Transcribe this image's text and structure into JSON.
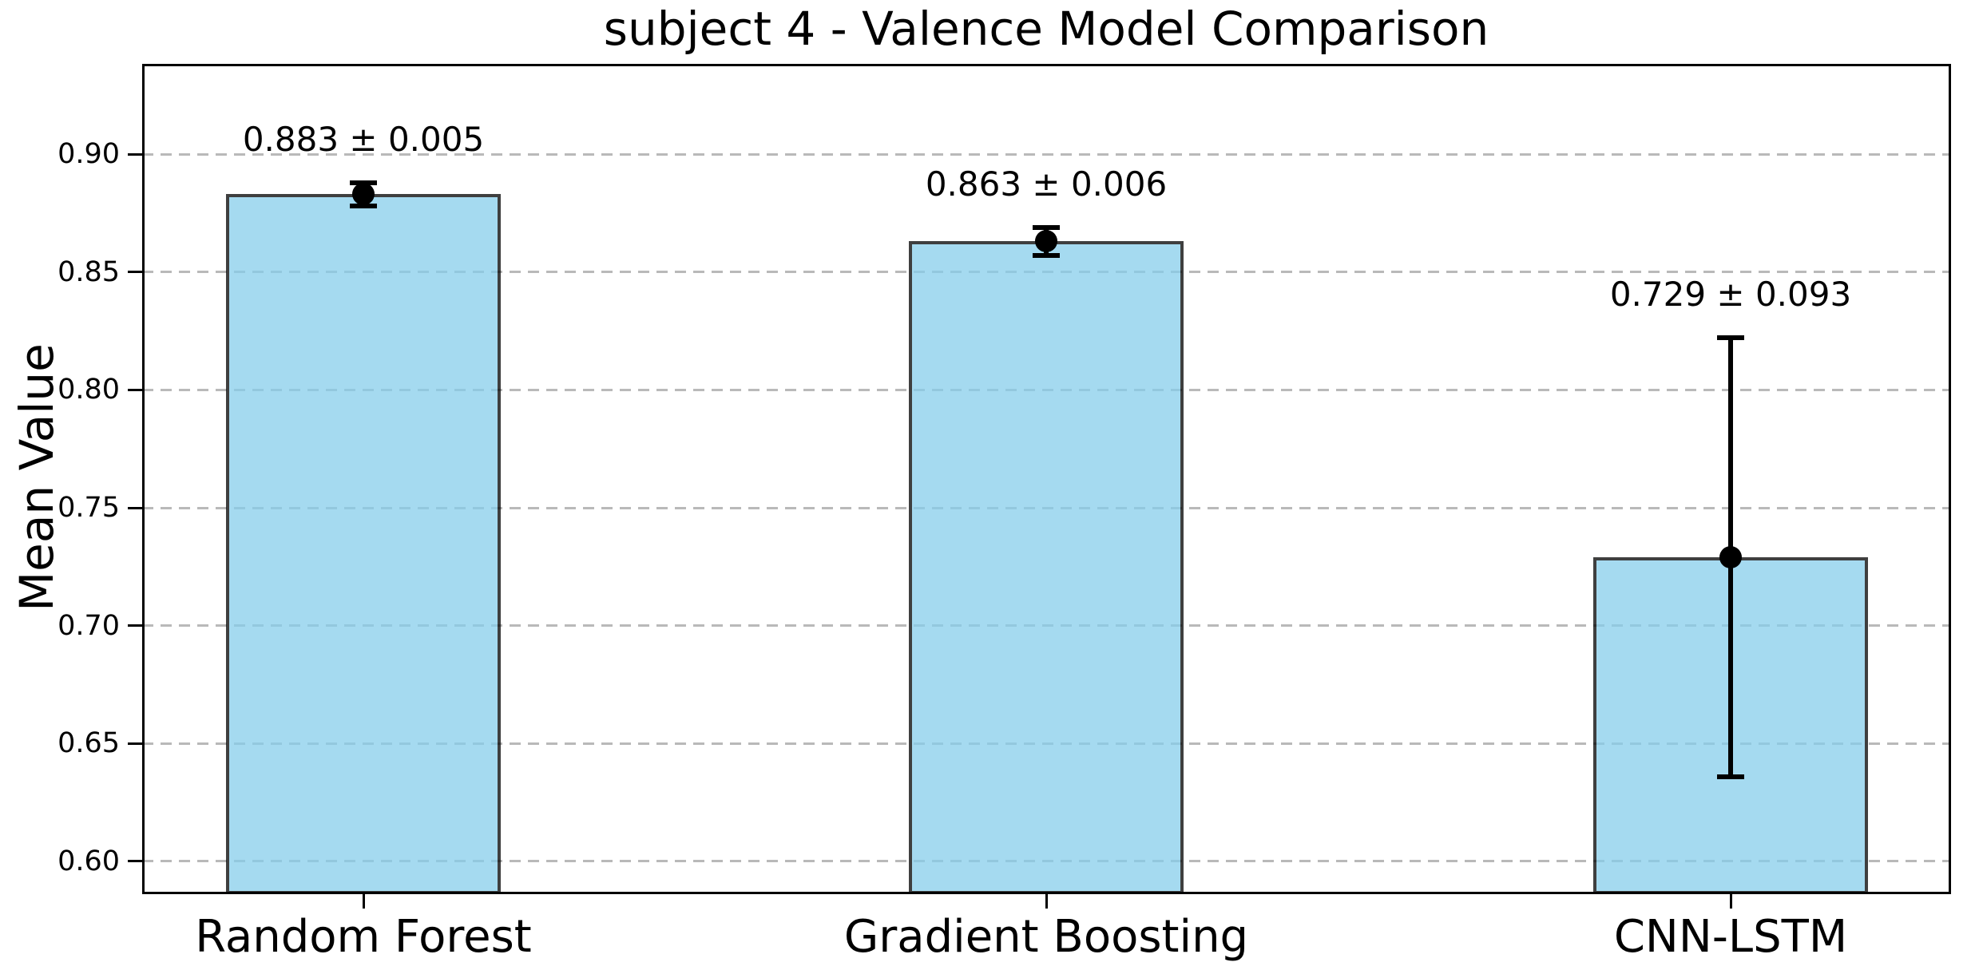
{
  "chart_data": {
    "type": "bar",
    "title": "subject 4 - Valence Model Comparison",
    "xlabel": "",
    "ylabel": "Mean Value",
    "categories": [
      "Random Forest",
      "Gradient Boosting",
      "CNN-LSTM"
    ],
    "values": [
      0.883,
      0.863,
      0.729
    ],
    "errors": [
      0.005,
      0.006,
      0.093
    ],
    "annotations": [
      "0.883 ± 0.005",
      "0.863 ± 0.006",
      "0.729 ± 0.093"
    ],
    "yticks": [
      0.6,
      0.65,
      0.7,
      0.75,
      0.8,
      0.85,
      0.9
    ],
    "ytick_labels": [
      "0.60",
      "0.65",
      "0.70",
      "0.75",
      "0.80",
      "0.85",
      "0.90"
    ],
    "ylim": [
      0.586,
      0.938
    ],
    "grid": "horizontal-dashed",
    "legend": "none",
    "bar_color": "#87CEEB",
    "bar_opacity": 0.75,
    "bar_edge_color": "#000000",
    "error_bar_color": "#000000",
    "grid_color": "#b9b9b9"
  }
}
